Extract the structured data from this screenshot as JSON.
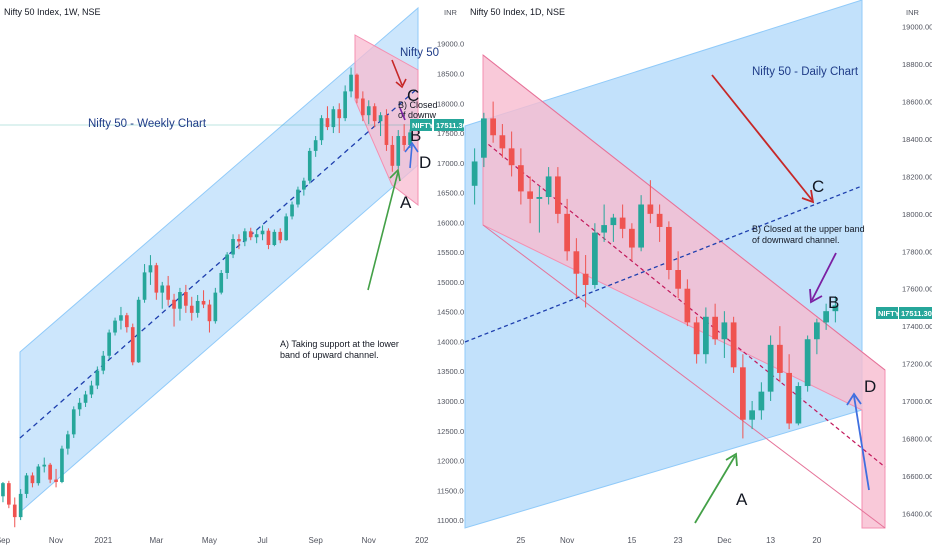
{
  "chart_data": [
    {
      "type": "candlestick",
      "header": "Nifty 50 Index, 1W, NSE",
      "title": "Nifty 50 - Weekly Chart",
      "y_ticks": [
        11000,
        11500,
        12000,
        12500,
        13000,
        13500,
        14000,
        14500,
        15000,
        15500,
        16000,
        16500,
        17000,
        17500,
        18000,
        18500,
        19000
      ],
      "y_tick_labels": [
        "11000.00",
        "11500.00",
        "12000.00",
        "12500.00",
        "13000.00",
        "13500.00",
        "14000.00",
        "14500.00",
        "15000.00",
        "15500.00",
        "16000.00",
        "16500.00",
        "17000.00",
        "17500.00",
        "18000.00",
        "18500.00",
        "19000.00"
      ],
      "ylim": [
        10800,
        19600
      ],
      "x_labels": [
        "Sep",
        "Nov",
        "2021",
        "Mar",
        "May",
        "Jul",
        "Sep",
        "Nov",
        "202"
      ],
      "x_label_weeks": [
        0,
        9,
        17,
        26,
        35,
        44,
        53,
        62,
        71
      ],
      "price_tag": {
        "symbol": "NIFTY",
        "value": "17511.30"
      },
      "candles": [
        [
          11400,
          11640,
          11300,
          11620
        ],
        [
          11620,
          11660,
          11200,
          11260
        ],
        [
          11260,
          11380,
          10880,
          11050
        ],
        [
          11050,
          11520,
          11000,
          11440
        ],
        [
          11440,
          11790,
          11370,
          11750
        ],
        [
          11750,
          11800,
          11550,
          11620
        ],
        [
          11620,
          11940,
          11580,
          11900
        ],
        [
          11900,
          12050,
          11800,
          11930
        ],
        [
          11930,
          11960,
          11620,
          11680
        ],
        [
          11680,
          11860,
          11550,
          11640
        ],
        [
          11640,
          12250,
          11620,
          12200
        ],
        [
          12200,
          12500,
          12100,
          12440
        ],
        [
          12440,
          12910,
          12380,
          12860
        ],
        [
          12860,
          13050,
          12750,
          12970
        ],
        [
          12970,
          13170,
          12900,
          13110
        ],
        [
          13110,
          13340,
          13050,
          13260
        ],
        [
          13260,
          13580,
          13200,
          13510
        ],
        [
          13510,
          13840,
          13450,
          13760
        ],
        [
          13760,
          14200,
          13700,
          14150
        ],
        [
          14150,
          14400,
          14100,
          14350
        ],
        [
          14350,
          14580,
          14200,
          14440
        ],
        [
          14440,
          14480,
          14150,
          14240
        ],
        [
          14240,
          14300,
          13600,
          13650
        ],
        [
          13650,
          14750,
          13640,
          14700
        ],
        [
          14700,
          15300,
          14650,
          15160
        ],
        [
          15160,
          15450,
          14950,
          15280
        ],
        [
          15280,
          15320,
          14700,
          14820
        ],
        [
          14820,
          15000,
          14550,
          14940
        ],
        [
          14940,
          15100,
          14600,
          14700
        ],
        [
          14700,
          14800,
          14250,
          14550
        ],
        [
          14550,
          14900,
          14350,
          14830
        ],
        [
          14830,
          14950,
          14480,
          14600
        ],
        [
          14600,
          14750,
          14350,
          14480
        ],
        [
          14480,
          14780,
          14400,
          14680
        ],
        [
          14680,
          14860,
          14560,
          14620
        ],
        [
          14620,
          14700,
          14150,
          14340
        ],
        [
          14340,
          14900,
          14300,
          14820
        ],
        [
          14820,
          15200,
          14790,
          15150
        ],
        [
          15150,
          15500,
          15050,
          15460
        ],
        [
          15460,
          15800,
          15400,
          15720
        ],
        [
          15720,
          15800,
          15550,
          15680
        ],
        [
          15680,
          15900,
          15600,
          15850
        ],
        [
          15850,
          15910,
          15700,
          15750
        ],
        [
          15750,
          15880,
          15650,
          15800
        ],
        [
          15800,
          15950,
          15700,
          15860
        ],
        [
          15860,
          15900,
          15550,
          15620
        ],
        [
          15620,
          15880,
          15600,
          15840
        ],
        [
          15840,
          15900,
          15650,
          15700
        ],
        [
          15700,
          16150,
          15690,
          16100
        ],
        [
          16100,
          16350,
          16050,
          16300
        ],
        [
          16300,
          16600,
          16250,
          16550
        ],
        [
          16550,
          16750,
          16450,
          16700
        ],
        [
          16700,
          17250,
          16650,
          17200
        ],
        [
          17200,
          17450,
          17100,
          17380
        ],
        [
          17380,
          17800,
          17300,
          17750
        ],
        [
          17750,
          17950,
          17550,
          17600
        ],
        [
          17600,
          17950,
          17500,
          17900
        ],
        [
          17900,
          18000,
          17500,
          17750
        ],
        [
          17750,
          18300,
          17700,
          18200
        ],
        [
          18200,
          18600,
          18100,
          18480
        ],
        [
          18480,
          18500,
          18000,
          18080
        ],
        [
          18080,
          18200,
          17700,
          17800
        ],
        [
          17800,
          18050,
          17650,
          17950
        ],
        [
          17950,
          18000,
          17600,
          17700
        ],
        [
          17700,
          17850,
          17450,
          17800
        ],
        [
          17800,
          17900,
          17200,
          17300
        ],
        [
          17300,
          17450,
          16850,
          16950
        ],
        [
          16950,
          17550,
          16900,
          17450
        ],
        [
          17450,
          17650,
          17200,
          17300
        ],
        [
          17300,
          17560,
          17250,
          17511
        ]
      ]
    },
    {
      "type": "candlestick",
      "header": "Nifty 50 Index, 1D, NSE",
      "title": "Nifty 50 - Daily Chart",
      "y_ticks": [
        16400,
        16600,
        16800,
        17000,
        17200,
        17400,
        17600,
        17800,
        18000,
        18200,
        18400,
        18600,
        18800,
        19000
      ],
      "y_tick_labels": [
        "16400.00",
        "16600.00",
        "16800.00",
        "17000.00",
        "17200.00",
        "17400.00",
        "17600.00",
        "17800.00",
        "18000.00",
        "18200.00",
        "18400.00",
        "18600.00",
        "18800.00",
        "19000.00"
      ],
      "ylim": [
        16300,
        19100
      ],
      "x_labels": [
        "25",
        "Nov",
        "15",
        "23",
        "Dec",
        "13",
        "20"
      ],
      "x_label_days": [
        5,
        10,
        17,
        22,
        27,
        32,
        37
      ],
      "price_tag": {
        "symbol": "NIFTY",
        "value": "17511.30"
      },
      "candles": [
        [
          18150,
          18350,
          18050,
          18280
        ],
        [
          18300,
          18540,
          18250,
          18510
        ],
        [
          18510,
          18600,
          18380,
          18420
        ],
        [
          18420,
          18480,
          18300,
          18350
        ],
        [
          18350,
          18440,
          18200,
          18260
        ],
        [
          18260,
          18350,
          18050,
          18120
        ],
        [
          18120,
          18200,
          17950,
          18080
        ],
        [
          18080,
          18150,
          17900,
          18090
        ],
        [
          18090,
          18250,
          18050,
          18200
        ],
        [
          18200,
          18250,
          17950,
          18000
        ],
        [
          18000,
          18080,
          17750,
          17800
        ],
        [
          17800,
          17870,
          17550,
          17680
        ],
        [
          17680,
          17780,
          17500,
          17620
        ],
        [
          17620,
          17950,
          17600,
          17900
        ],
        [
          17900,
          18050,
          17850,
          17940
        ],
        [
          17940,
          18000,
          17850,
          17980
        ],
        [
          17980,
          18050,
          17870,
          17920
        ],
        [
          17920,
          17950,
          17750,
          17820
        ],
        [
          17820,
          18100,
          17800,
          18050
        ],
        [
          18050,
          18180,
          17950,
          18000
        ],
        [
          18000,
          18050,
          17850,
          17930
        ],
        [
          17930,
          17960,
          17650,
          17700
        ],
        [
          17700,
          17800,
          17550,
          17600
        ],
        [
          17600,
          17650,
          17400,
          17420
        ],
        [
          17420,
          17450,
          17200,
          17250
        ],
        [
          17250,
          17500,
          17200,
          17450
        ],
        [
          17450,
          17520,
          17300,
          17330
        ],
        [
          17330,
          17480,
          17230,
          17420
        ],
        [
          17420,
          17450,
          17150,
          17180
        ],
        [
          17180,
          17250,
          16800,
          16900
        ],
        [
          16900,
          17000,
          16850,
          16950
        ],
        [
          16950,
          17100,
          16900,
          17050
        ],
        [
          17050,
          17350,
          17000,
          17300
        ],
        [
          17300,
          17400,
          17100,
          17150
        ],
        [
          17150,
          17250,
          16850,
          16880
        ],
        [
          16880,
          17100,
          16870,
          17080
        ],
        [
          17080,
          17350,
          17050,
          17330
        ],
        [
          17330,
          17440,
          17250,
          17420
        ],
        [
          17420,
          17520,
          17380,
          17480
        ],
        [
          17480,
          17560,
          17420,
          17511
        ]
      ]
    }
  ],
  "annotations": {
    "weekly_a_text": [
      "A) Taking support at the lower",
      "band of upward channel."
    ],
    "weekly_b_text": [
      "B) Closed",
      "of downw"
    ],
    "weekly_label_title_right": "Nifty 50",
    "daily_b_text": [
      "B) Closed at the upper band",
      "of downward channel."
    ],
    "labels": {
      "a": "A",
      "b": "B",
      "c": "C",
      "d": "D"
    },
    "currency": "INR"
  },
  "colors": {
    "up": "#26a69a",
    "down": "#ef5350",
    "blue_channel": "#bbdefb",
    "pink_channel": "#f8bbd0",
    "midline": "#1e3fae",
    "arrow_red": "#c62828",
    "arrow_green": "#43a047",
    "arrow_blue": "#3f6fe0",
    "arrow_purple": "#7b1fa2",
    "price_tag": "#26a69a",
    "title": "#1f3c88"
  }
}
